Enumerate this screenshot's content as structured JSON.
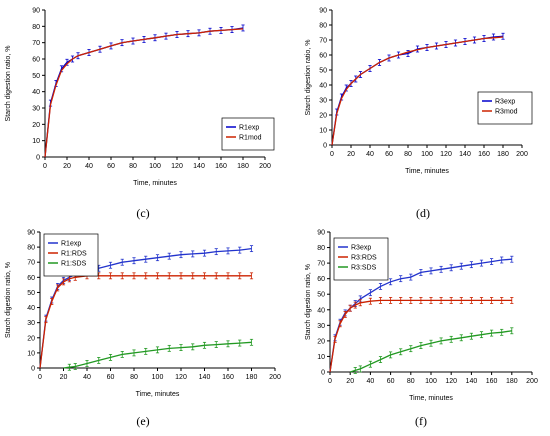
{
  "chart_data": [
    {
      "panel": "(c)",
      "type": "line",
      "xlabel": "Time, minutes",
      "ylabel": "Starch digestion ratio, %",
      "xlim": [
        0,
        200
      ],
      "ylim": [
        0,
        90
      ],
      "x_ticks": [
        0,
        20,
        40,
        60,
        80,
        100,
        120,
        140,
        160,
        180,
        200
      ],
      "y_ticks": [
        0,
        10,
        20,
        30,
        40,
        50,
        60,
        70,
        80,
        90
      ],
      "legend_position": "bottom-right",
      "series": [
        {
          "name": "R1exp",
          "color": "#0000cc",
          "error_bars": true,
          "x": [
            0,
            5,
            10,
            15,
            20,
            25,
            30,
            40,
            50,
            60,
            70,
            80,
            90,
            100,
            110,
            120,
            130,
            140,
            150,
            160,
            170,
            180
          ],
          "y": [
            0,
            33,
            45,
            54,
            58,
            60,
            62,
            64,
            66,
            68,
            70,
            71,
            72,
            73,
            74,
            75,
            75.5,
            76,
            77,
            77.5,
            78,
            79
          ]
        },
        {
          "name": "R1mod",
          "color": "#cc2200",
          "error_bars": false,
          "x": [
            0,
            5,
            10,
            15,
            20,
            25,
            30,
            40,
            50,
            60,
            70,
            80,
            90,
            100,
            110,
            120,
            130,
            140,
            150,
            160,
            170,
            180
          ],
          "y": [
            0,
            32,
            44,
            53,
            57,
            60,
            62,
            64,
            66,
            68,
            70,
            71,
            72,
            73,
            74,
            75,
            75.5,
            76,
            77,
            77.5,
            78,
            78.5
          ]
        }
      ]
    },
    {
      "panel": "(d)",
      "type": "line",
      "xlabel": "Time, minutes",
      "ylabel": "Starch digestion ratio, %",
      "xlim": [
        0,
        200
      ],
      "ylim": [
        0,
        90
      ],
      "x_ticks": [
        0,
        20,
        40,
        60,
        80,
        100,
        120,
        140,
        160,
        180,
        200
      ],
      "y_ticks": [
        0,
        10,
        20,
        30,
        40,
        50,
        60,
        70,
        80,
        90
      ],
      "legend_position": "bottom-right",
      "series": [
        {
          "name": "R3exp",
          "color": "#0000cc",
          "error_bars": true,
          "x": [
            0,
            5,
            10,
            15,
            20,
            25,
            30,
            40,
            50,
            60,
            70,
            80,
            90,
            100,
            110,
            120,
            130,
            140,
            150,
            160,
            170,
            180
          ],
          "y": [
            0,
            22,
            32,
            38,
            41,
            44,
            47,
            51,
            55,
            58,
            60,
            61,
            64,
            65,
            66,
            67,
            68,
            69,
            70,
            71,
            72,
            72.5
          ]
        },
        {
          "name": "R3mod",
          "color": "#cc2200",
          "error_bars": false,
          "x": [
            0,
            5,
            10,
            15,
            20,
            25,
            30,
            40,
            50,
            60,
            70,
            80,
            90,
            100,
            110,
            120,
            130,
            140,
            150,
            160,
            170,
            180
          ],
          "y": [
            0,
            21,
            31,
            37,
            41,
            44,
            47,
            51,
            55,
            58,
            60,
            62,
            63.5,
            65,
            66,
            67,
            68,
            69,
            70,
            71,
            71.5,
            72
          ]
        }
      ]
    },
    {
      "panel": "(e)",
      "type": "line",
      "xlabel": "Time, minutes",
      "ylabel": "Starch digestion ratio, %",
      "xlim": [
        0,
        200
      ],
      "ylim": [
        0,
        90
      ],
      "x_ticks": [
        0,
        20,
        40,
        60,
        80,
        100,
        120,
        140,
        160,
        180,
        200
      ],
      "y_ticks": [
        0,
        10,
        20,
        30,
        40,
        50,
        60,
        70,
        80,
        90
      ],
      "legend_position": "top-left",
      "series": [
        {
          "name": "R1exp",
          "color": "#2233cc",
          "error_bars": true,
          "x": [
            0,
            5,
            10,
            15,
            20,
            25,
            30,
            40,
            50,
            60,
            70,
            80,
            90,
            100,
            110,
            120,
            130,
            140,
            150,
            160,
            170,
            180
          ],
          "y": [
            0,
            33,
            45,
            54,
            58,
            60,
            62,
            64,
            66,
            68,
            70,
            71,
            72,
            73,
            74,
            75,
            75.5,
            76,
            77,
            77.5,
            78,
            79
          ]
        },
        {
          "name": "R1:RDS",
          "color": "#cc2200",
          "error_bars": true,
          "x": [
            0,
            5,
            10,
            15,
            20,
            25,
            30,
            40,
            50,
            60,
            70,
            80,
            90,
            100,
            110,
            120,
            130,
            140,
            150,
            160,
            170,
            180
          ],
          "y": [
            0,
            32,
            44,
            53,
            57,
            59,
            60,
            61,
            61,
            61,
            61,
            61,
            61,
            61,
            61,
            61,
            61,
            61,
            61,
            61,
            61,
            61
          ]
        },
        {
          "name": "R1:SDS",
          "color": "#229922",
          "error_bars": true,
          "x": [
            20,
            25,
            30,
            40,
            50,
            60,
            70,
            80,
            90,
            100,
            110,
            120,
            130,
            140,
            150,
            160,
            170,
            180
          ],
          "y": [
            0,
            0.5,
            1,
            3,
            5,
            7,
            9,
            10,
            11,
            12,
            13,
            13.5,
            14,
            15,
            15.5,
            16,
            16.5,
            17
          ]
        }
      ]
    },
    {
      "panel": "(f)",
      "type": "line",
      "xlabel": "Time, minutes",
      "ylabel": "Starch digestion ratio, %",
      "xlim": [
        0,
        200
      ],
      "ylim": [
        0,
        90
      ],
      "x_ticks": [
        0,
        20,
        40,
        60,
        80,
        100,
        120,
        140,
        160,
        180,
        200
      ],
      "y_ticks": [
        0,
        10,
        20,
        30,
        40,
        50,
        60,
        70,
        80,
        90
      ],
      "legend_position": "top-left",
      "series": [
        {
          "name": "R3exp",
          "color": "#2233cc",
          "error_bars": true,
          "x": [
            0,
            5,
            10,
            15,
            20,
            25,
            30,
            40,
            50,
            60,
            70,
            80,
            90,
            100,
            110,
            120,
            130,
            140,
            150,
            160,
            170,
            180
          ],
          "y": [
            0,
            22,
            32,
            38,
            41,
            44,
            47,
            51,
            55,
            58,
            60,
            61,
            64,
            65,
            66,
            67,
            68,
            69,
            70,
            71,
            72,
            72.5
          ]
        },
        {
          "name": "R3:RDS",
          "color": "#cc2200",
          "error_bars": true,
          "x": [
            0,
            5,
            10,
            15,
            20,
            25,
            30,
            40,
            50,
            60,
            70,
            80,
            90,
            100,
            110,
            120,
            130,
            140,
            150,
            160,
            170,
            180
          ],
          "y": [
            0,
            21,
            31,
            37,
            41,
            43,
            44.5,
            45.5,
            46,
            46,
            46,
            46,
            46,
            46,
            46,
            46,
            46,
            46,
            46,
            46,
            46,
            46
          ]
        },
        {
          "name": "R3:SDS",
          "color": "#229922",
          "error_bars": true,
          "x": [
            20,
            25,
            30,
            40,
            50,
            60,
            70,
            80,
            90,
            100,
            110,
            120,
            130,
            140,
            150,
            160,
            170,
            180
          ],
          "y": [
            0,
            1,
            2,
            5,
            8,
            11,
            13,
            15,
            17,
            18.5,
            20,
            21,
            22,
            23,
            24,
            25,
            25.5,
            26.5
          ]
        }
      ]
    }
  ],
  "captions": [
    "(c)",
    "(d)",
    "(e)",
    "(f)"
  ]
}
